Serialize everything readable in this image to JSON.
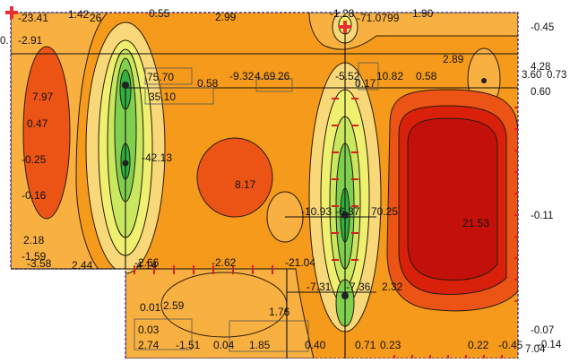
{
  "colors": {
    "background": "#ffffff",
    "slab_fill": "#f59a1a",
    "slab_outline": "#1a1a9a",
    "contour_line": "#2a1a0a",
    "level_light_orange": "#f8b040",
    "level_pale": "#f8d878",
    "level_yellow": "#f0f070",
    "level_yellow_green": "#c8e860",
    "level_green": "#80d050",
    "level_dark_green": "#30b040",
    "level_red_orange": "#ec5416",
    "level_red": "#d8200a",
    "level_deep_red": "#c4100a",
    "wall_line": "#111111",
    "support_marker": "#e83030",
    "support_tick": "#d82020"
  },
  "plate": {
    "point_labels": [
      "-23.41",
      "1.42",
      "26",
      "0.55",
      "2.99",
      "-1.28",
      "-71.0799",
      "1.90",
      "-2.91",
      "75.70",
      "-9.32",
      "4.69",
      "26",
      "-5.52",
      "10.82",
      "0.58",
      "2.89",
      "7.97",
      "0.47",
      "-0.25",
      "-0.16",
      "35.10",
      "0.58",
      "0.17",
      "-42.13",
      "8.17",
      "-10.93",
      "-6.37",
      "70.25",
      "21.53",
      "2.18",
      "-1.59",
      "-3.58",
      "2.44",
      "-2.66",
      "4.14",
      "-2.62",
      "-21.04",
      "-7.31",
      "-7.36",
      "2.32",
      "0.01",
      "2.59",
      "0.03",
      "1.76",
      "2.74",
      "-1.51",
      "0.04",
      "1.85",
      "0.40",
      "0.71",
      "0.23",
      "0.22",
      "-0.45"
    ],
    "right_side_labels": [
      "-0.45",
      "4.28",
      "3.60",
      "0.73",
      "0.60",
      "-0.11",
      "-0.07",
      "-0.14",
      "7.04"
    ],
    "left_edge_label": "0."
  }
}
